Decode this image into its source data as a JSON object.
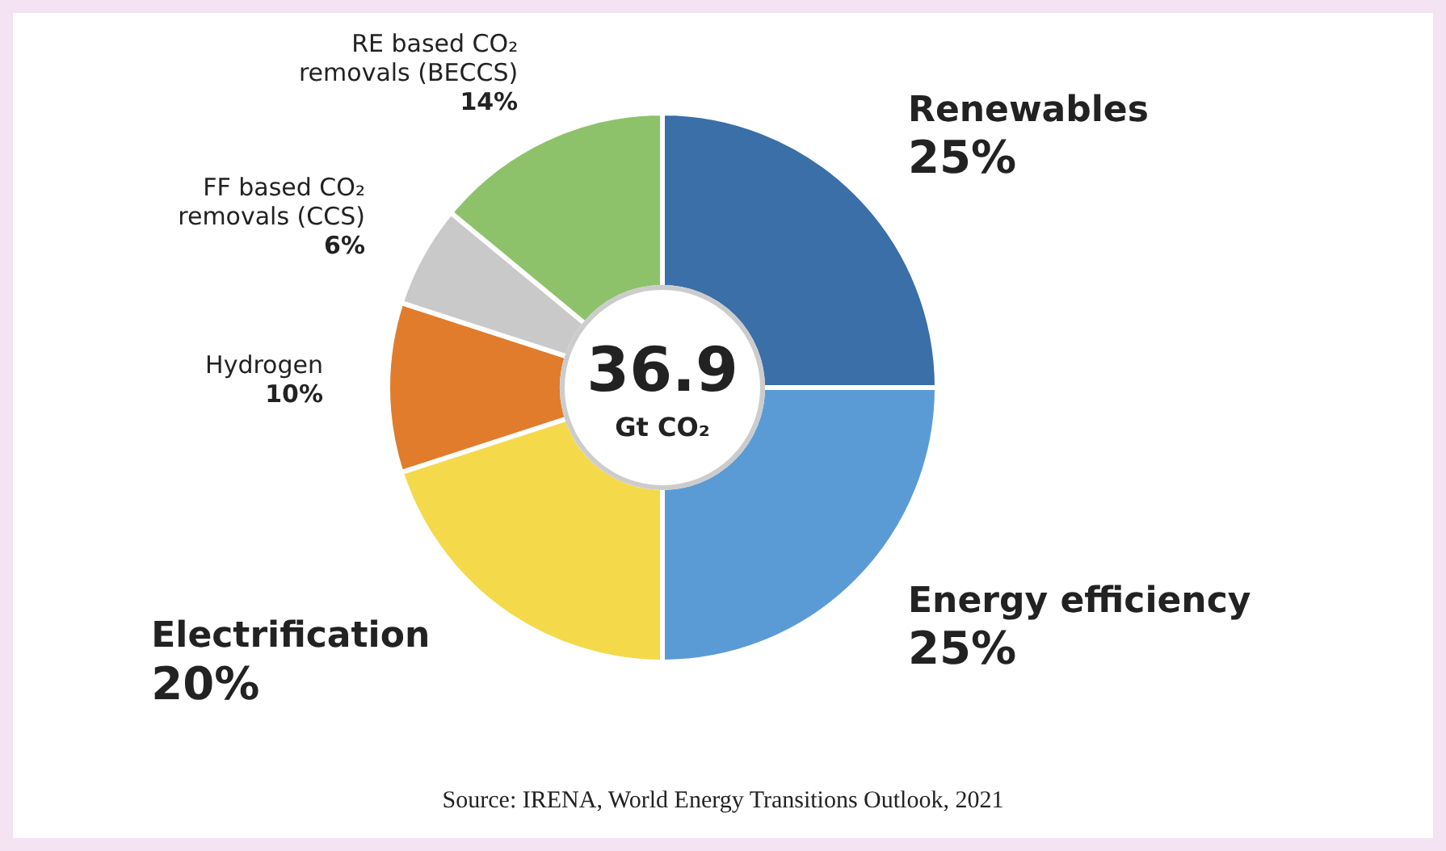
{
  "chart_data": {
    "type": "donut",
    "categories": [
      "Renewables",
      "Energy efficiency",
      "Electrification",
      "Hydrogen",
      "FF based CO₂ removals (CCS)",
      "RE based CO₂ removals (BECCS)"
    ],
    "values": [
      25,
      25,
      20,
      10,
      6,
      14
    ],
    "value_labels": [
      "25%",
      "25%",
      "20%",
      "10%",
      "6%",
      "14%"
    ],
    "colors": [
      "#3a6fa8",
      "#5b9bd5",
      "#f4d94a",
      "#e07c2c",
      "#c9c9c9",
      "#8dc26b"
    ],
    "annotations": [
      "36.9",
      "Gt CO₂",
      "Source: IRENA, World Energy Transitions Outlook, 2021"
    ]
  }
}
